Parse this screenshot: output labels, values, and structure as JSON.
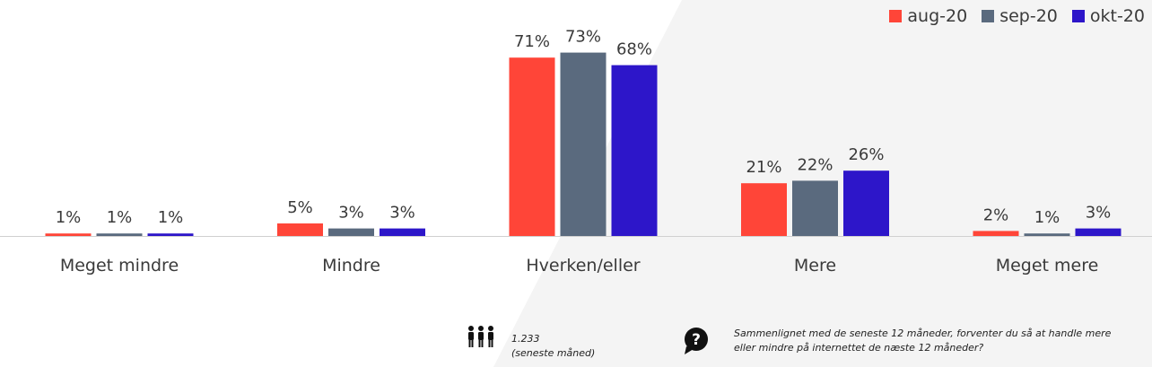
{
  "colors": {
    "aug": "#ff4538",
    "sep": "#5a6a7e",
    "okt": "#2d16c9",
    "text": "#3a3a3a",
    "axis": "#d0d0d0",
    "background_shade": "#f4f4f4"
  },
  "chart_data": {
    "type": "bar",
    "categories": [
      "Meget mindre",
      "Mindre",
      "Hverken/eller",
      "Mere",
      "Meget mere"
    ],
    "series": [
      {
        "name": "aug-20",
        "values": [
          1,
          5,
          71,
          21,
          2
        ],
        "labels": [
          "1%",
          "5%",
          "71%",
          "21%",
          "2%"
        ],
        "color": "#ff4538"
      },
      {
        "name": "sep-20",
        "values": [
          1,
          3,
          73,
          22,
          1
        ],
        "labels": [
          "1%",
          "3%",
          "73%",
          "22%",
          "1%"
        ],
        "color": "#5a6a7e"
      },
      {
        "name": "okt-20",
        "values": [
          1,
          3,
          68,
          26,
          3
        ],
        "labels": [
          "1%",
          "3%",
          "68%",
          "26%",
          "3%"
        ],
        "color": "#2d16c9"
      }
    ],
    "ylim": [
      0,
      80
    ],
    "unit": "%",
    "legend_position": "top-right",
    "grid": false
  },
  "footer": {
    "sample_icon": "people-group-icon",
    "sample_size": "1.233",
    "sample_note": "(seneste måned)",
    "question_icon": "question-bubble-icon",
    "question_line1": "Sammenlignet med de seneste 12 måneder, forventer du så at handle mere",
    "question_line2": "eller mindre på internettet de næste 12 måneder?"
  }
}
